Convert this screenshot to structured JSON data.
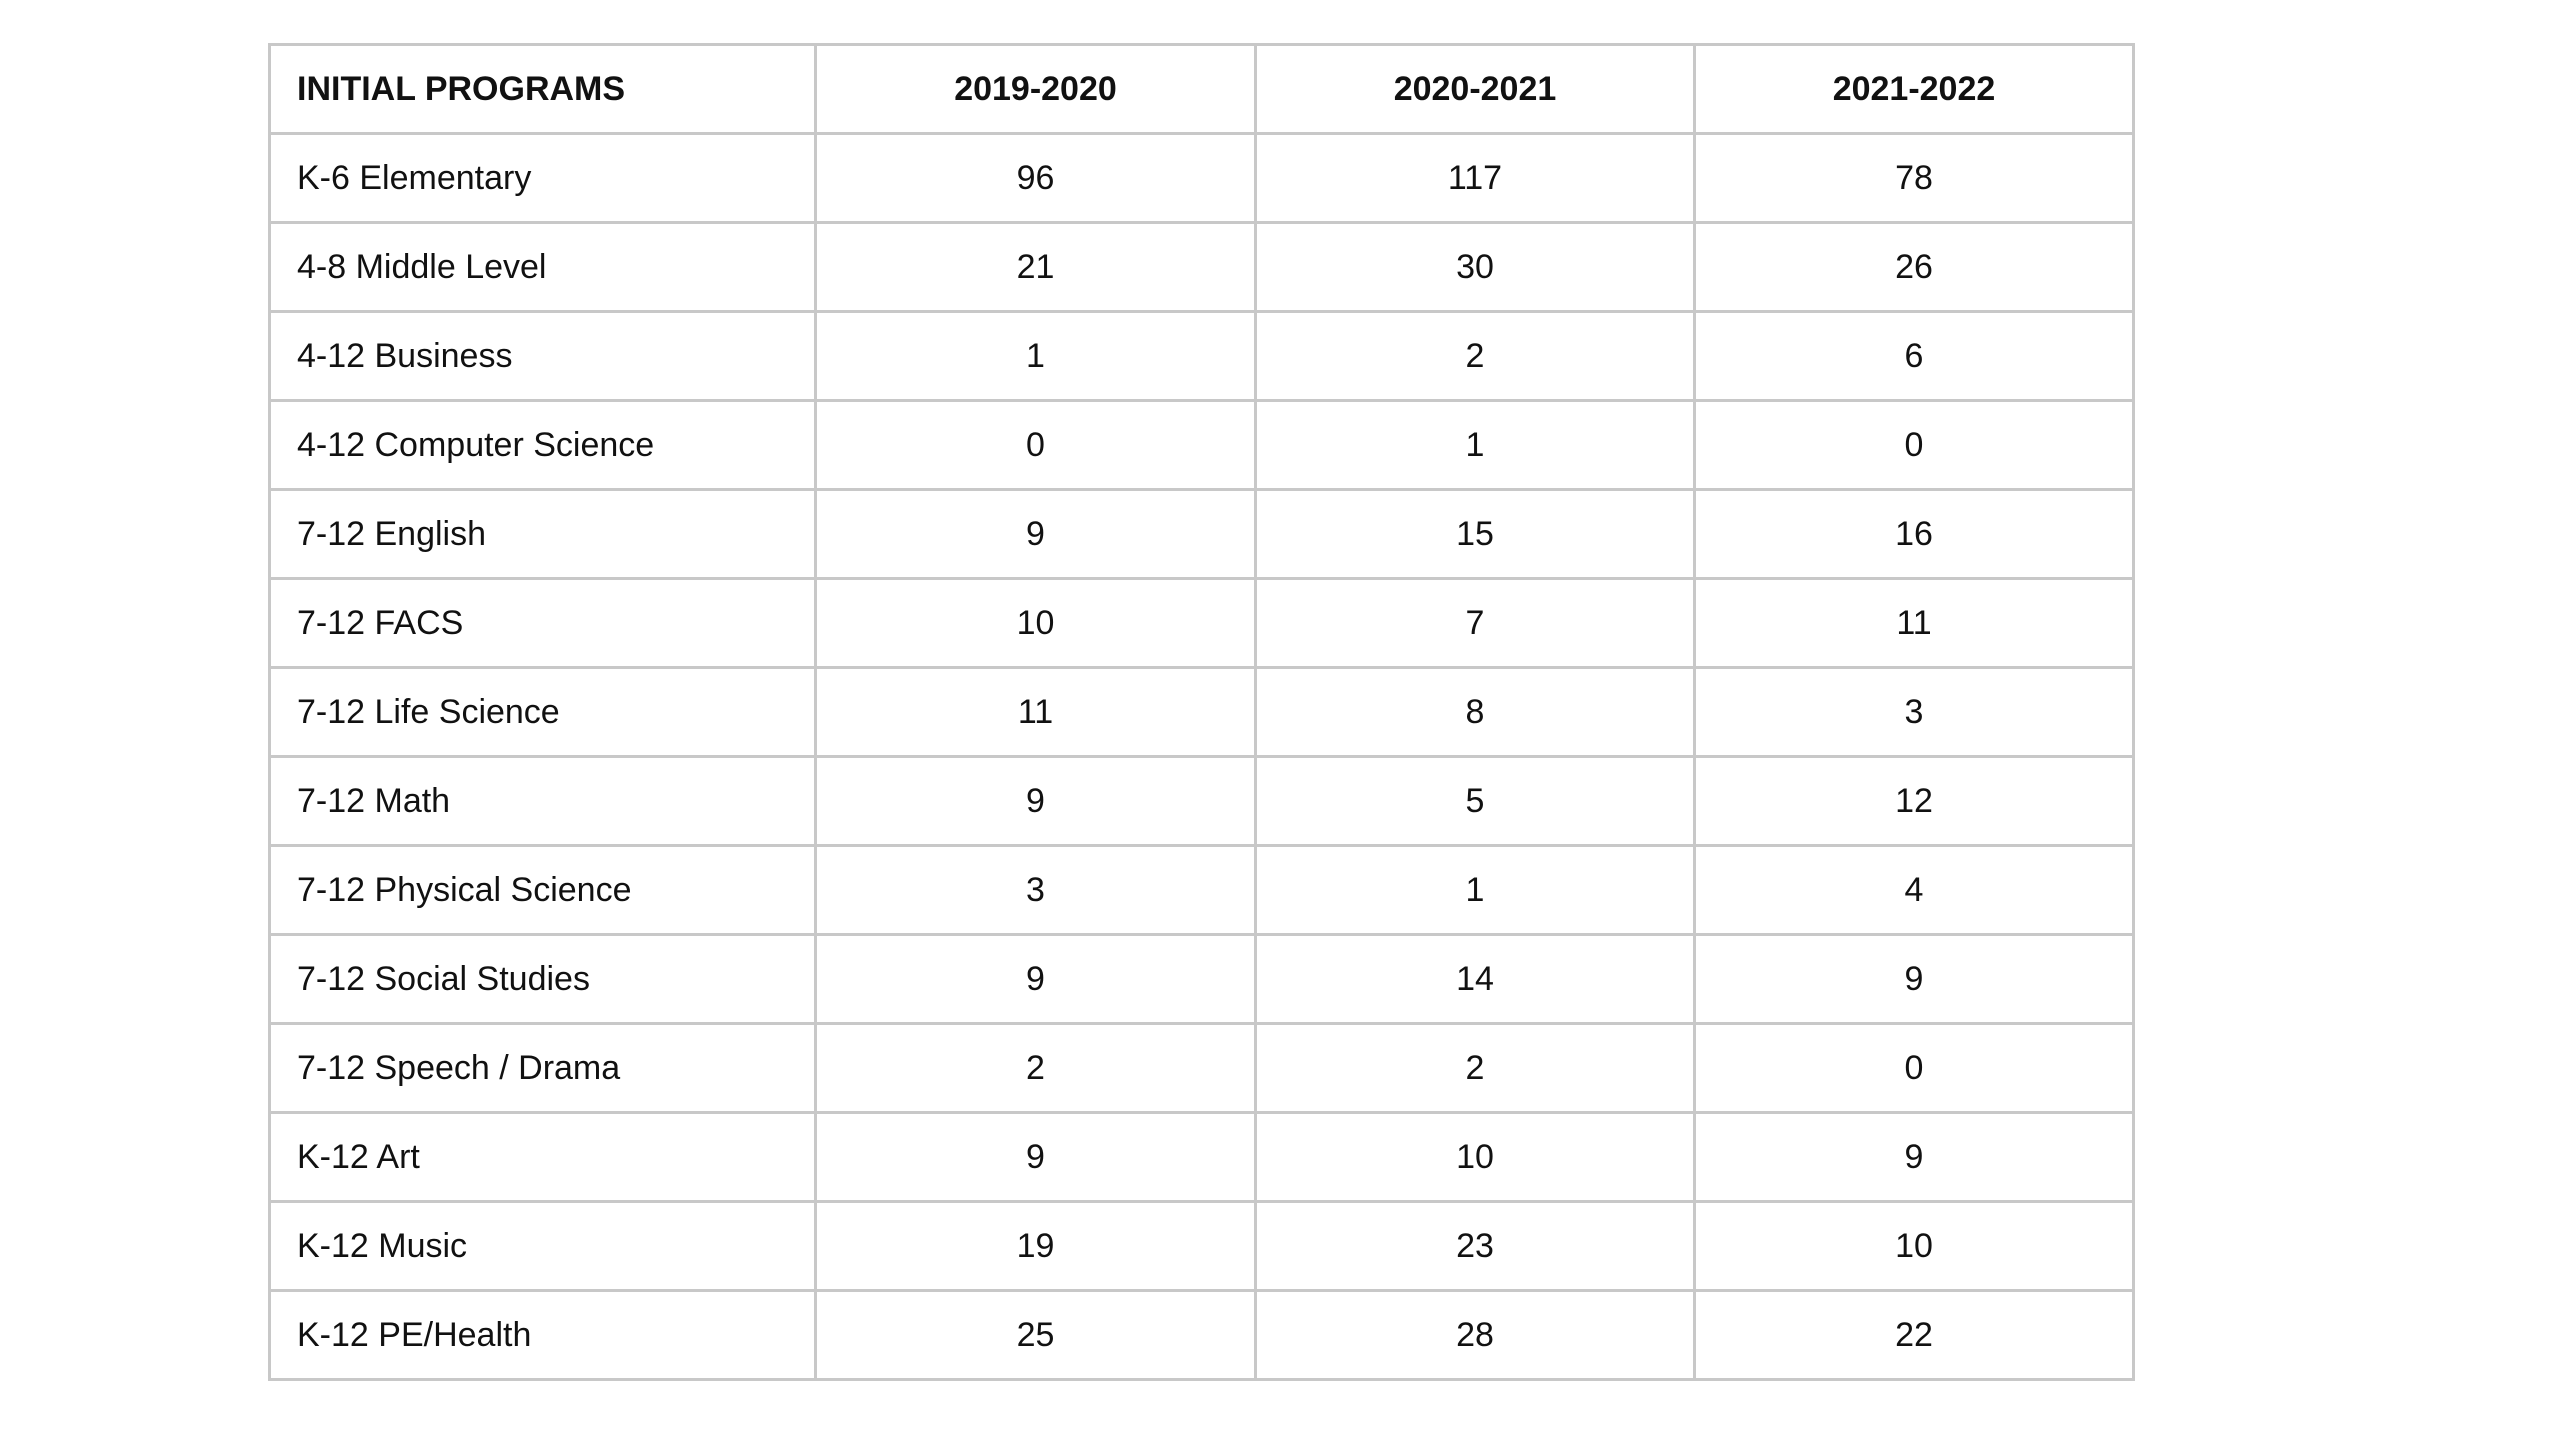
{
  "table": {
    "headers": [
      "INITIAL PROGRAMS",
      "2019-2020",
      "2020-2021",
      "2021-2022"
    ],
    "rows": [
      [
        "K-6 Elementary",
        "96",
        "117",
        "78"
      ],
      [
        "4-8 Middle Level",
        "21",
        "30",
        "26"
      ],
      [
        "4-12 Business",
        "1",
        "2",
        "6"
      ],
      [
        "4-12 Computer Science",
        "0",
        "1",
        "0"
      ],
      [
        "7-12 English",
        "9",
        "15",
        "16"
      ],
      [
        "7-12 FACS",
        "10",
        "7",
        "11"
      ],
      [
        "7-12 Life Science",
        "11",
        "8",
        "3"
      ],
      [
        "7-12 Math",
        "9",
        "5",
        "12"
      ],
      [
        "7-12 Physical Science",
        "3",
        "1",
        "4"
      ],
      [
        "7-12 Social Studies",
        "9",
        "14",
        "9"
      ],
      [
        "7-12 Speech / Drama",
        "2",
        "2",
        "0"
      ],
      [
        "K-12 Art",
        "9",
        "10",
        "9"
      ],
      [
        "K-12 Music",
        "19",
        "23",
        "10"
      ],
      [
        "K-12 PE/Health",
        "25",
        "28",
        "22"
      ]
    ]
  }
}
